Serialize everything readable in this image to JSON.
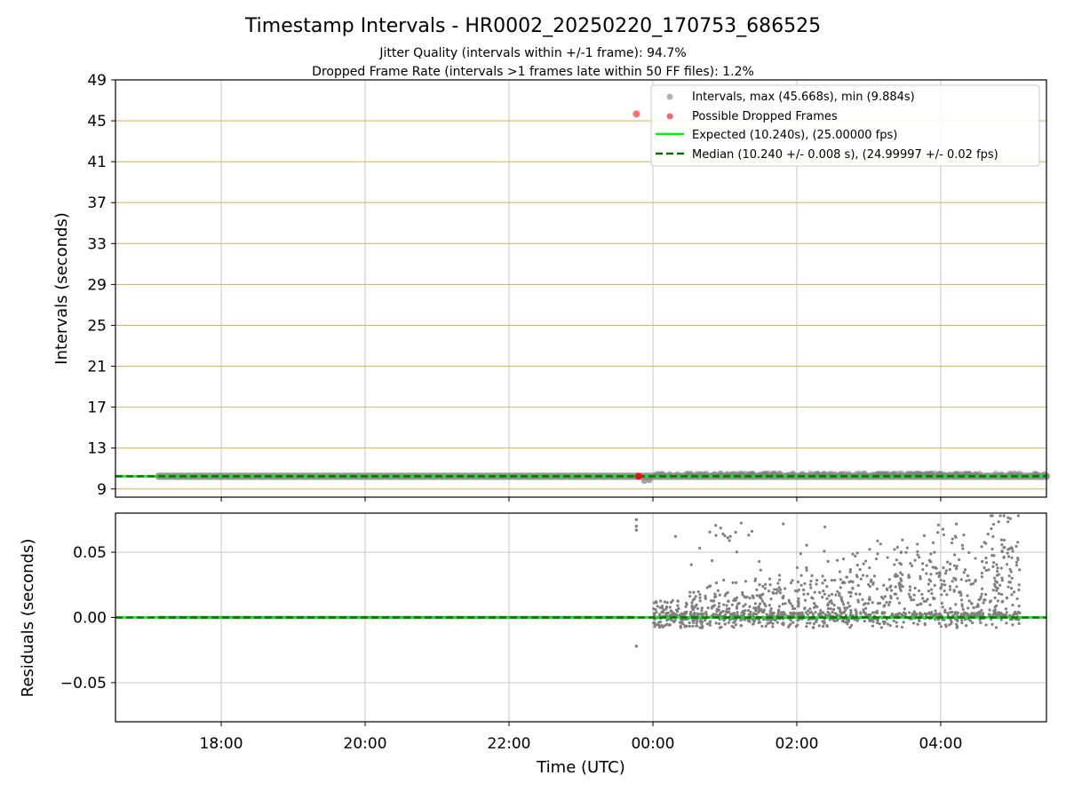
{
  "figure": {
    "title": "Timestamp Intervals - HR0002_20250220_170753_686525",
    "subtitle_1": "Jitter Quality (intervals within +/-1 frame): 94.7%",
    "subtitle_2": "Dropped Frame Rate (intervals >1 frames late within 50 FF files): 1.2%"
  },
  "colors": {
    "intervals": "#808080",
    "dropped": "#ff0000",
    "expected": "#00ee00",
    "median": "#007000",
    "hgrid_top": "#d4b86a",
    "grid": "#c8c8c8"
  },
  "chart_data": [
    {
      "type": "scatter",
      "ylabel": "Intervals (seconds)",
      "xlabel": "",
      "ylim": [
        8.2,
        49
      ],
      "xlim_hours": [
        -7.47,
        5.47
      ],
      "yticks": [
        "9",
        "13",
        "17",
        "21",
        "25",
        "29",
        "33",
        "37",
        "41",
        "45",
        "49"
      ],
      "ytick_values": [
        9,
        13,
        17,
        21,
        25,
        29,
        33,
        37,
        41,
        45,
        49
      ],
      "grid": "horizontal gold lines + vertical gray lines",
      "legend": {
        "placement": "top-right",
        "entries": [
          "Intervals, max (45.668s), min (9.884s)",
          "Possible Dropped Frames",
          "Expected (10.240s), (25.00000 fps)",
          "Median (10.240 +/- 0.008 s), (24.99997 +/- 0.02 fps)"
        ]
      },
      "series": [
        {
          "name": "Intervals, max (45.668s), min (9.884s)",
          "x_range_hours": [
            -6.87,
            5.47
          ],
          "typical_value": 10.24,
          "max": 45.668,
          "min": 9.884
        },
        {
          "name": "Possible Dropped Frames",
          "points": [
            {
              "x": -0.23,
              "y": 45.668
            },
            {
              "x": -0.2,
              "y": 10.24
            }
          ]
        },
        {
          "name": "Expected (10.240s), (25.00000 fps)",
          "value": 10.24
        },
        {
          "name": "Median (10.240 +/- 0.008 s), (24.99997 +/- 0.02 fps)",
          "value": 10.24
        }
      ]
    },
    {
      "type": "scatter",
      "ylabel": "Residuals (seconds)",
      "xlabel": "Time (UTC)",
      "ylim": [
        -0.08,
        0.08
      ],
      "yticks": [
        "−0.05",
        "0.00",
        "0.05"
      ],
      "ytick_values": [
        -0.05,
        0.0,
        0.05
      ],
      "xticks": [
        "18:00",
        "20:00",
        "22:00",
        "00:00",
        "02:00",
        "04:00"
      ],
      "xtick_hours": [
        -6,
        -4,
        -2,
        0,
        2,
        4
      ],
      "grid": "on",
      "series": [
        {
          "name": "Residuals",
          "before_midnight": 0.0,
          "outliers": [
            {
              "x": -0.23,
              "y": 0.075
            },
            {
              "x": -0.23,
              "y": 0.07
            },
            {
              "x": -0.23,
              "y": 0.067
            },
            {
              "x": -0.23,
              "y": -0.022
            }
          ],
          "scatter_x_range_hours": [
            0.0,
            5.1
          ],
          "scatter_y_range": [
            -0.012,
            0.078
          ]
        },
        {
          "name": "Expected",
          "value": 0.0
        },
        {
          "name": "Median",
          "value": 0.0
        }
      ]
    }
  ]
}
